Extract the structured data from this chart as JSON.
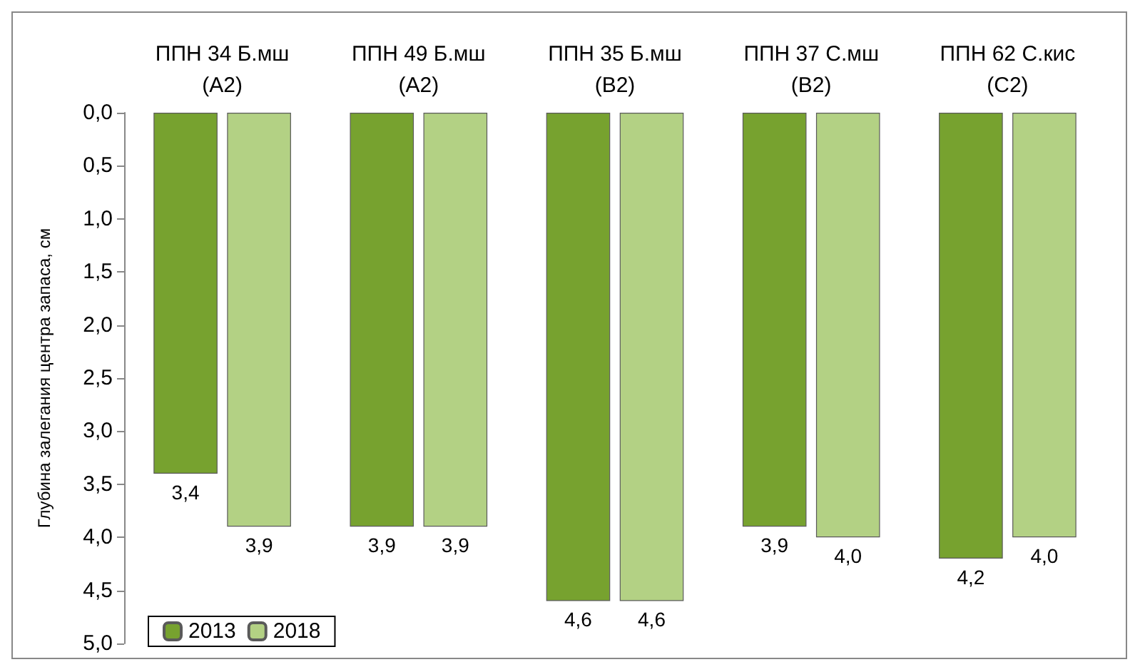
{
  "chart_data": {
    "type": "bar",
    "ylabel": "Глубина залегания центра запаса, см",
    "categories": [
      "ППН 34 Б.мш\n(А2)",
      "ППН 49 Б.мш\n(А2)",
      "ППН 35 Б.мш\n(В2)",
      "ППН 37 С.мш\n(В2)",
      "ППН 62 С.кис\n(С2)"
    ],
    "series": [
      {
        "name": "2013",
        "color": "#77a22f",
        "values": [
          3.4,
          3.9,
          4.6,
          3.9,
          4.2
        ],
        "value_labels": [
          "3,4",
          "3,9",
          "4,6",
          "3,9",
          "4,2"
        ]
      },
      {
        "name": "2018",
        "color": "#b3d184",
        "values": [
          3.9,
          3.9,
          4.6,
          4.0,
          4.0
        ],
        "value_labels": [
          "3,9",
          "3,9",
          "4,6",
          "4,0",
          "4,0"
        ]
      }
    ],
    "ylim": [
      5,
      0
    ],
    "yticks": [
      {
        "value": 0,
        "label": "0,0"
      },
      {
        "value": 0.5,
        "label": "0,5"
      },
      {
        "value": 1,
        "label": "1,0"
      },
      {
        "value": 1.5,
        "label": "1,5"
      },
      {
        "value": 2,
        "label": "2,0"
      },
      {
        "value": 2.5,
        "label": "2,5"
      },
      {
        "value": 3,
        "label": "3,0"
      },
      {
        "value": 3.5,
        "label": "3,5"
      },
      {
        "value": 4,
        "label": "4,0"
      },
      {
        "value": 4.5,
        "label": "4,5"
      },
      {
        "value": 5,
        "label": "5,0"
      }
    ],
    "grid": false,
    "legend": "bottom left"
  }
}
